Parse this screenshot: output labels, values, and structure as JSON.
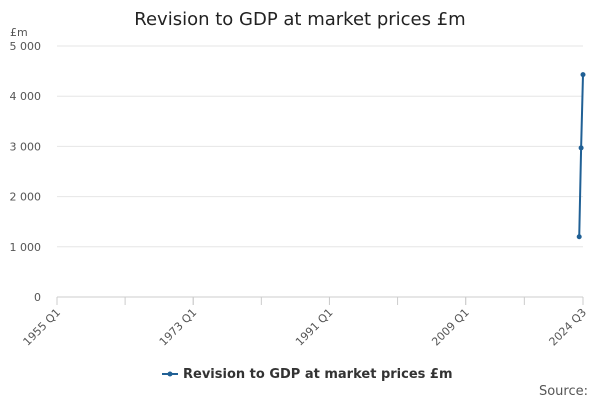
{
  "chart_data": {
    "type": "line",
    "title": "Revision to GDP at market prices £m",
    "ylabel": "£m",
    "ylim": [
      0,
      5000
    ],
    "yticks": [
      {
        "value": 0,
        "label": "0"
      },
      {
        "value": 1000,
        "label": "1 000"
      },
      {
        "value": 2000,
        "label": "2 000"
      },
      {
        "value": 3000,
        "label": "3 000"
      },
      {
        "value": 4000,
        "label": "4 000"
      },
      {
        "value": 5000,
        "label": "5 000"
      }
    ],
    "xrange": [
      "1955 Q1",
      "2024 Q3"
    ],
    "xticks": [
      "1955 Q1",
      "1973 Q1",
      "1991 Q1",
      "2009 Q1",
      "2024 Q3"
    ],
    "series": [
      {
        "name": "Revision to GDP at market prices £m",
        "color": "#206095",
        "points": [
          {
            "x": "2024 Q1",
            "y": 1200
          },
          {
            "x": "2024 Q2",
            "y": 2970
          },
          {
            "x": "2024 Q3",
            "y": 4430
          }
        ]
      }
    ],
    "grid": true,
    "legend": "bottom-center",
    "source_label": "Source:"
  }
}
